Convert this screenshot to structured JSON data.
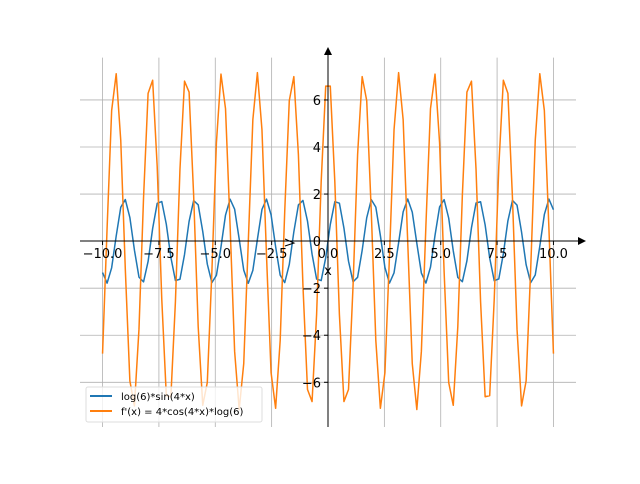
{
  "chart_data": {
    "type": "line",
    "title": "",
    "xlabel": "x",
    "ylabel": "",
    "xlim": [
      -11,
      11
    ],
    "ylim": [
      -7.9,
      7.8
    ],
    "grid": true,
    "legend_placement": "lower-left",
    "x_ticks": [
      "−10.0",
      "−7.5",
      "−5.0",
      "−2.5",
      "0.0",
      "2.5",
      "5.0",
      "7.5",
      "10.0"
    ],
    "x_tick_values": [
      -10,
      -7.5,
      -5,
      -2.5,
      0,
      2.5,
      5,
      7.5,
      10
    ],
    "y_ticks": [
      "−6",
      "−4",
      "−2",
      "0",
      "2",
      "4",
      "6"
    ],
    "y_tick_values": [
      -6,
      -4,
      -2,
      0,
      2,
      4,
      6
    ],
    "sampling": {
      "x_start": -10,
      "x_end": 10,
      "count": 100
    },
    "series": [
      {
        "name": "log(6)*sin(4*x)",
        "color": "#1f77b4",
        "function": "sin",
        "amplitude": 1.791759,
        "frequency": 4
      },
      {
        "name": "f'(x) = 4*cos(4*x)*log(6)",
        "color": "#ff7f0e",
        "function": "cos",
        "amplitude": 7.167038,
        "frequency": 4
      }
    ]
  }
}
